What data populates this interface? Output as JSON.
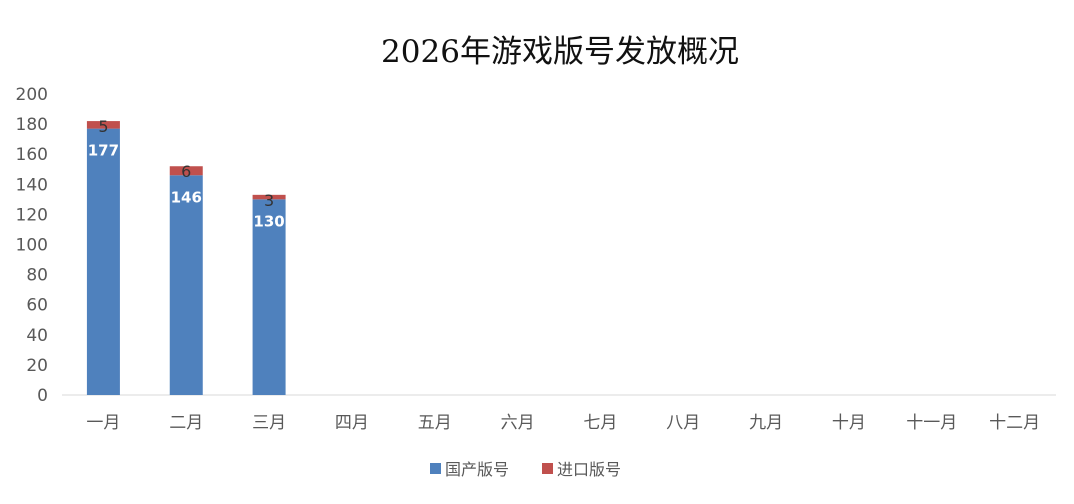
{
  "chart_data": {
    "type": "bar",
    "stacked": true,
    "title": "2026年游戏版号发放概况",
    "xlabel": "",
    "ylabel": "",
    "ylim": [
      0,
      200
    ],
    "yticks": [
      0,
      20,
      40,
      60,
      80,
      100,
      120,
      140,
      160,
      180,
      200
    ],
    "grid": false,
    "legend": "bottom",
    "categories": [
      "一月",
      "二月",
      "三月",
      "四月",
      "五月",
      "六月",
      "七月",
      "八月",
      "九月",
      "十月",
      "十一月",
      "十二月"
    ],
    "series": [
      {
        "name": "国产版号",
        "color": "#4F81BD",
        "values": [
          177,
          146,
          130,
          null,
          null,
          null,
          null,
          null,
          null,
          null,
          null,
          null
        ]
      },
      {
        "name": "进口版号",
        "color": "#C0504D",
        "values": [
          5,
          6,
          3,
          null,
          null,
          null,
          null,
          null,
          null,
          null,
          null,
          null
        ]
      }
    ]
  }
}
